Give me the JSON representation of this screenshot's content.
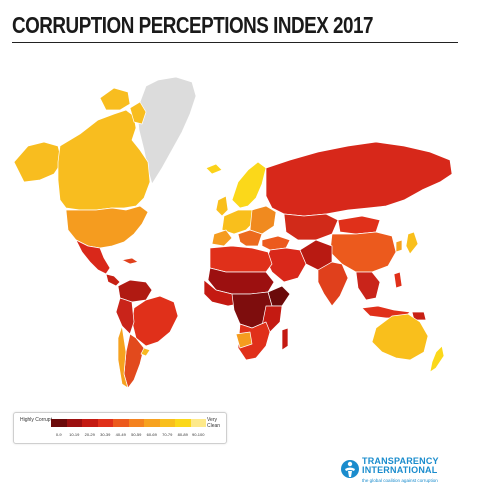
{
  "header": {
    "title": "CORRUPTION PERCEPTIONS INDEX 2017"
  },
  "map": {
    "colors": {
      "no_data": "#dcdcdc",
      "background": "#ffffff",
      "borders": "#ffffff"
    }
  },
  "legend": {
    "low_label": "Highly Corrupt",
    "high_label": "Very Clean",
    "bins": [
      {
        "label": "0-9",
        "color": "#6b0a0a"
      },
      {
        "label": "10-19",
        "color": "#9c1010"
      },
      {
        "label": "20-29",
        "color": "#c41a12"
      },
      {
        "label": "30-39",
        "color": "#e0301a"
      },
      {
        "label": "40-49",
        "color": "#ec5a1d"
      },
      {
        "label": "50-59",
        "color": "#f4821f"
      },
      {
        "label": "60-69",
        "color": "#f7a21f"
      },
      {
        "label": "70-79",
        "color": "#f9bf1c"
      },
      {
        "label": "80-89",
        "color": "#fbd81a"
      },
      {
        "label": "90-100",
        "color": "#fde98a"
      }
    ]
  },
  "logo": {
    "name_line1": "TRANSPARENCY",
    "name_line2": "INTERNATIONAL",
    "tagline": "the global coalition against corruption",
    "color": "#1a8ccd",
    "icon": "globe-figure-icon"
  }
}
